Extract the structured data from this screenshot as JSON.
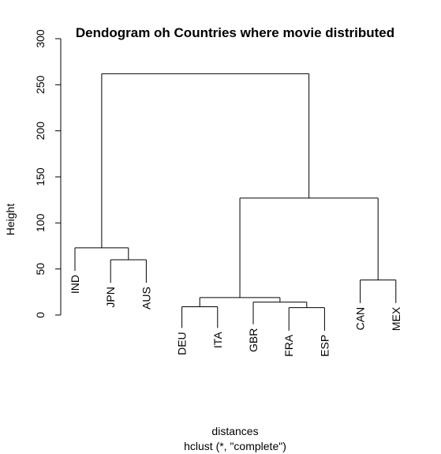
{
  "chart_data": {
    "type": "dendrogram",
    "title": "Dendogram oh Countries where movie distributed",
    "xlabel": "distances",
    "sub": "hclust (*, \"complete\")",
    "ylabel": "Height",
    "ylim": [
      0,
      300
    ],
    "yticks": [
      0,
      50,
      100,
      150,
      200,
      250,
      300
    ],
    "leaves": [
      "IND",
      "JPN",
      "AUS",
      "DEU",
      "ITA",
      "GBR",
      "FRA",
      "ESP",
      "CAN",
      "MEX"
    ],
    "merges": [
      {
        "left": "FRA",
        "right": "ESP",
        "height": 8
      },
      {
        "left": "DEU",
        "right": "ITA",
        "height": 9
      },
      {
        "left": "GBR",
        "right": "FRA+ESP",
        "height": 14
      },
      {
        "left": "DEU+ITA",
        "right": "GBR+FRA+ESP",
        "height": 19
      },
      {
        "left": "CAN",
        "right": "MEX",
        "height": 38
      },
      {
        "left": "JPN",
        "right": "AUS",
        "height": 60
      },
      {
        "left": "IND",
        "right": "JPN+AUS",
        "height": 73
      },
      {
        "left": "DEU+ITA+GBR+FRA+ESP",
        "right": "CAN+MEX",
        "height": 127
      },
      {
        "left": "IND+JPN+AUS",
        "right": "DEU+ITA+GBR+FRA+ESP+CAN+MEX",
        "height": 262
      }
    ],
    "leaf_heights": {
      "IND": 48,
      "JPN": 35,
      "AUS": 35,
      "DEU": -14,
      "ITA": -14,
      "GBR": -10,
      "FRA": -17,
      "ESP": -17,
      "CAN": 13,
      "MEX": 13
    },
    "grid": false
  }
}
